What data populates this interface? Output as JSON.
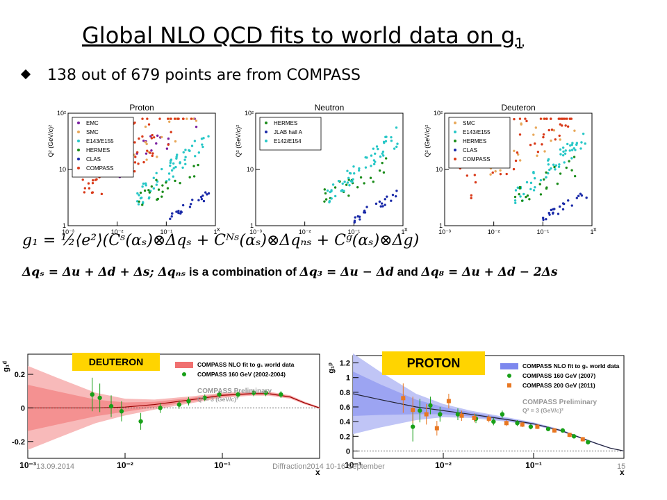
{
  "slide": {
    "title": "Global NLO QCD fits to world data on g",
    "title_sub": "1",
    "bullet": "138 out of 679 points are from COMPASS",
    "formula1": "g₁ = ½⟨e²⟩(Cˢ(αₛ)⊗Δqₛ + Cᴺˢ(αₛ)⊗Δqₙₛ + Cᵍ(αₛ)⊗Δg)",
    "formula2a": "Δqₛ = Δu + Δd + Δs; Δqₙₛ",
    "formula2b": " is a combination of ",
    "formula2c": "Δq₃ = Δu − Δd",
    "formula2d": " and ",
    "formula2e": "Δq₈ = Δu + Δd − 2Δs",
    "footer_date": "13.09.2014",
    "footer_conf": "Diffraction2014 10-16 September",
    "footer_page": "15"
  },
  "chart_data": [
    {
      "type": "scatter",
      "title": "Proton",
      "ylabel": "Q² (GeV/c)²",
      "xlabel": "x",
      "xscale": "log",
      "yscale": "log",
      "xlim": [
        0.001,
        1
      ],
      "ylim": [
        1,
        100
      ],
      "x_ticks": [
        "10⁻³",
        "10⁻²",
        "10⁻¹",
        "1"
      ],
      "y_ticks": [
        "1",
        "10",
        "10²"
      ],
      "legend_position": "top-left",
      "series": [
        {
          "name": "EMC",
          "color": "#7a1fa0"
        },
        {
          "name": "SMC",
          "color": "#e8a85a"
        },
        {
          "name": "E143/E155",
          "color": "#27c7c7"
        },
        {
          "name": "HERMES",
          "color": "#1a8c1a"
        },
        {
          "name": "CLAS",
          "color": "#1a2aa8"
        },
        {
          "name": "COMPASS",
          "color": "#d93a1a"
        }
      ]
    },
    {
      "type": "scatter",
      "title": "Neutron",
      "ylabel": "Q² (GeV/c)²",
      "xlabel": "x",
      "xscale": "log",
      "yscale": "log",
      "xlim": [
        0.001,
        1
      ],
      "ylim": [
        1,
        100
      ],
      "x_ticks": [
        "10⁻³",
        "10⁻²",
        "10⁻¹",
        "1"
      ],
      "y_ticks": [
        "1",
        "10",
        "10²"
      ],
      "legend_position": "top-left",
      "series": [
        {
          "name": "HERMES",
          "color": "#1a8c1a"
        },
        {
          "name": "JLAB hall A",
          "color": "#1a2aa8"
        },
        {
          "name": "E142/E154",
          "color": "#27c7c7"
        }
      ]
    },
    {
      "type": "scatter",
      "title": "Deuteron",
      "ylabel": "Q² (GeV/c)²",
      "xlabel": "x",
      "xscale": "log",
      "yscale": "log",
      "xlim": [
        0.001,
        1
      ],
      "ylim": [
        1,
        100
      ],
      "x_ticks": [
        "10⁻³",
        "10⁻²",
        "10⁻¹",
        "1"
      ],
      "y_ticks": [
        "1",
        "10",
        "10²"
      ],
      "legend_position": "top-left",
      "series": [
        {
          "name": "SMC",
          "color": "#e8a85a"
        },
        {
          "name": "E143/E155",
          "color": "#27c7c7"
        },
        {
          "name": "HERMES",
          "color": "#1a8c1a"
        },
        {
          "name": "CLAS",
          "color": "#1a2aa8"
        },
        {
          "name": "COMPASS",
          "color": "#d93a1a"
        }
      ]
    },
    {
      "type": "line",
      "label": "DEUTERON",
      "ylabel": "g₁ᵈ",
      "xlabel": "x",
      "xscale": "log",
      "xlim": [
        0.001,
        1
      ],
      "ylim": [
        -0.3,
        0.32
      ],
      "x_ticks": [
        "10⁻³",
        "10⁻²",
        "10⁻¹"
      ],
      "y_ticks": [
        "-0.2",
        "0",
        "0.2"
      ],
      "legend": [
        "COMPASS NLO fit to g₁ world data",
        "COMPASS 160 GeV (2002-2004)"
      ],
      "annotation": [
        "COMPASS Preliminary",
        "Q² = 3 (GeV/c)²"
      ],
      "series": [
        {
          "name": "COMPASS 160 GeV (2002-2004)",
          "color": "#18a018",
          "x": [
            0.0046,
            0.0055,
            0.0072,
            0.0092,
            0.0145,
            0.023,
            0.036,
            0.045,
            0.066,
            0.093,
            0.145,
            0.21,
            0.28,
            0.4
          ],
          "y": [
            0.08,
            0.06,
            0.01,
            -0.02,
            -0.08,
            0.0,
            0.02,
            0.04,
            0.06,
            0.08,
            0.08,
            0.09,
            0.09,
            0.08
          ],
          "err": [
            0.1,
            0.085,
            0.065,
            0.06,
            0.05,
            0.03,
            0.025,
            0.025,
            0.02,
            0.02,
            0.02,
            0.02,
            0.02,
            0.02
          ]
        },
        {
          "name": "COMPASS NLO fit to g₁ world data",
          "color": "#e02020",
          "x": [
            0.001,
            0.002,
            0.005,
            0.01,
            0.02,
            0.05,
            0.1,
            0.2,
            0.3,
            0.5,
            0.7,
            1.0
          ],
          "y": [
            0.0,
            0.0,
            0.0,
            0.005,
            0.02,
            0.05,
            0.075,
            0.085,
            0.085,
            0.065,
            0.03,
            0.0
          ],
          "band": [
            0.25,
            0.18,
            0.09,
            0.05,
            0.03,
            0.02,
            0.015,
            0.012,
            0.012,
            0.01,
            0.008,
            0.006
          ]
        }
      ]
    },
    {
      "type": "line",
      "label": "PROTON",
      "ylabel": "g₁ᵖ",
      "xlabel": "x",
      "xscale": "log",
      "xlim": [
        0.001,
        1
      ],
      "ylim": [
        -0.1,
        1.3
      ],
      "x_ticks": [
        "10⁻³",
        "10⁻²",
        "10⁻¹"
      ],
      "y_ticks": [
        "0",
        "0.2",
        "0.4",
        "0.6",
        "0.8",
        "1",
        "1.2"
      ],
      "legend": [
        "COMPASS NLO fit to g₁ world data",
        "COMPASS 160 GeV (2007)",
        "COMPASS 200 GeV (2011)"
      ],
      "annotation": [
        "COMPASS Preliminary",
        "Q² = 3 (GeV/c)²"
      ],
      "series": [
        {
          "name": "COMPASS 160 GeV (2007)",
          "color": "#18a018",
          "x": [
            0.0046,
            0.0055,
            0.0072,
            0.0092,
            0.0145,
            0.023,
            0.036,
            0.045,
            0.066,
            0.093,
            0.145,
            0.21,
            0.28,
            0.4
          ],
          "y": [
            0.33,
            0.55,
            0.62,
            0.5,
            0.5,
            0.44,
            0.4,
            0.5,
            0.38,
            0.33,
            0.3,
            0.28,
            0.2,
            0.12
          ],
          "err": [
            0.2,
            0.16,
            0.12,
            0.1,
            0.08,
            0.06,
            0.05,
            0.05,
            0.04,
            0.035,
            0.03,
            0.03,
            0.03,
            0.03
          ]
        },
        {
          "name": "COMPASS 200 GeV (2011)",
          "color": "#e87722",
          "x": [
            0.0036,
            0.0046,
            0.0065,
            0.0085,
            0.0115,
            0.016,
            0.022,
            0.032,
            0.05,
            0.075,
            0.11,
            0.17,
            0.25,
            0.35
          ],
          "y": [
            0.72,
            0.56,
            0.5,
            0.31,
            0.68,
            0.48,
            0.45,
            0.44,
            0.38,
            0.36,
            0.33,
            0.28,
            0.22,
            0.16
          ],
          "err": [
            0.2,
            0.18,
            0.14,
            0.1,
            0.1,
            0.07,
            0.06,
            0.05,
            0.04,
            0.035,
            0.03,
            0.03,
            0.03,
            0.03
          ]
        },
        {
          "name": "COMPASS NLO fit to g₁ world data",
          "color": "#1a2acc",
          "x": [
            0.001,
            0.002,
            0.005,
            0.01,
            0.02,
            0.05,
            0.1,
            0.2,
            0.3,
            0.5,
            0.7,
            1.0
          ],
          "y": [
            0.78,
            0.7,
            0.6,
            0.55,
            0.5,
            0.43,
            0.37,
            0.28,
            0.2,
            0.1,
            0.04,
            0.0
          ],
          "band": [
            0.55,
            0.38,
            0.18,
            0.09,
            0.05,
            0.03,
            0.02,
            0.015,
            0.012,
            0.01,
            0.008,
            0.006
          ]
        }
      ]
    }
  ]
}
